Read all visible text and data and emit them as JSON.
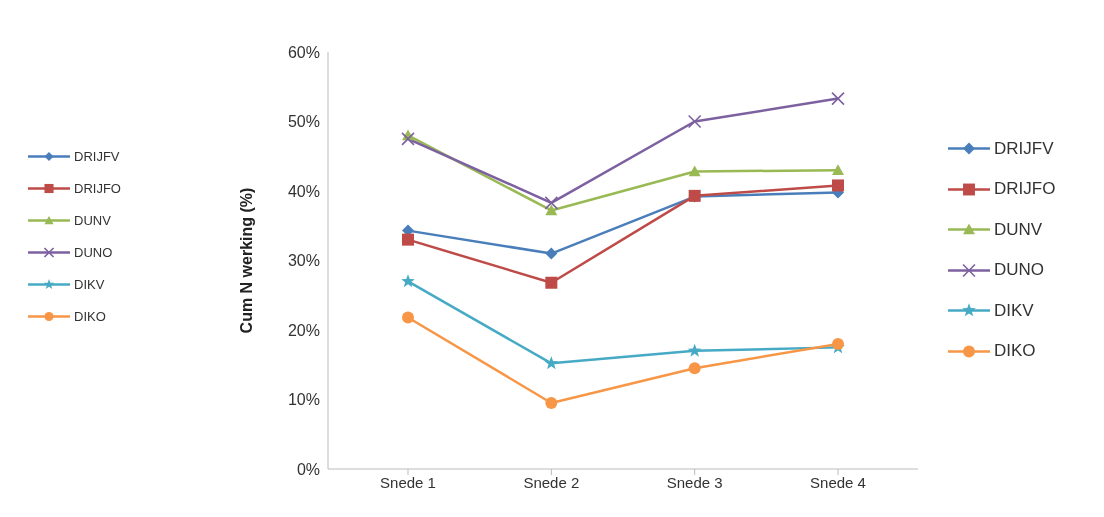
{
  "chart_data": {
    "type": "line",
    "ylabel": "Cum N werking (%)",
    "categories": [
      "Snede 1",
      "Snede 2",
      "Snede 3",
      "Snede 4"
    ],
    "ylim": [
      0,
      60
    ],
    "yticks": [
      {
        "value": 0,
        "label": "0%"
      },
      {
        "value": 10,
        "label": "10%"
      },
      {
        "value": 20,
        "label": "20%"
      },
      {
        "value": 30,
        "label": "30%"
      },
      {
        "value": 40,
        "label": "40%"
      },
      {
        "value": 50,
        "label": "50%"
      },
      {
        "value": 60,
        "label": "60%"
      }
    ],
    "grid": false,
    "legend": "right",
    "series": [
      {
        "name": "DRIJFV",
        "color": "#4a7ebb",
        "marker": "diamond",
        "values": [
          34.3,
          31,
          39.2,
          39.8
        ]
      },
      {
        "name": "DRIJFO",
        "color": "#be4b48",
        "marker": "square",
        "values": [
          33,
          26.8,
          39.3,
          40.8
        ]
      },
      {
        "name": "DUNV",
        "color": "#98b954",
        "marker": "triangle",
        "values": [
          48,
          37.2,
          42.8,
          43
        ]
      },
      {
        "name": "DUNO",
        "color": "#7d60a0",
        "marker": "cross",
        "values": [
          47.5,
          38.3,
          50,
          53.3
        ]
      },
      {
        "name": "DIKV",
        "color": "#46aac5",
        "marker": "star",
        "values": [
          27,
          15.2,
          17,
          17.5
        ]
      },
      {
        "name": "DIKO",
        "color": "#f79646",
        "marker": "circle",
        "values": [
          21.8,
          9.5,
          14.5,
          18
        ]
      }
    ]
  }
}
